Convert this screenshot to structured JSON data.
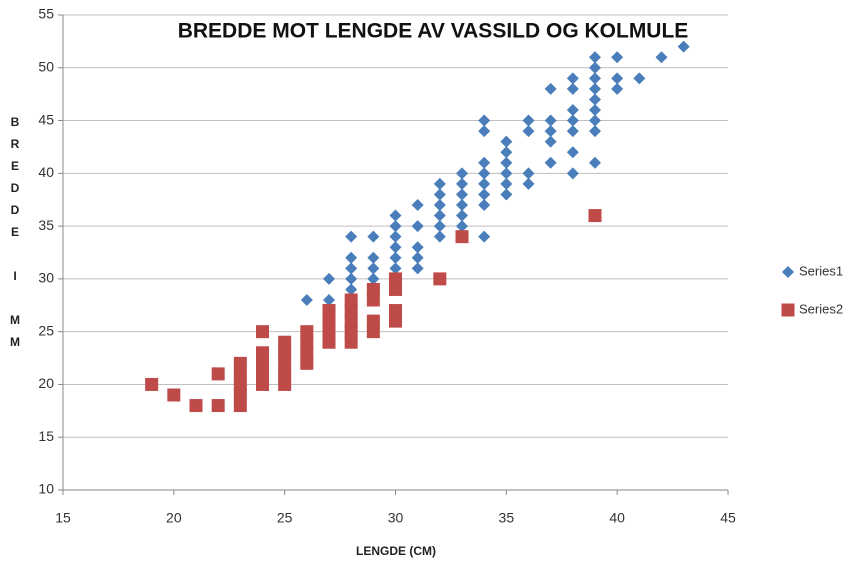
{
  "chart_data": {
    "type": "scatter",
    "title": "BREDDE MOT LENGDE AV VASSILD OG KOLMULE",
    "x_label": "LENGDE (CM)",
    "y_label": "BREDDE I MM",
    "xlim": [
      15,
      45
    ],
    "xticks": [
      15,
      20,
      25,
      30,
      35,
      40,
      45
    ],
    "ylim": [
      10,
      55
    ],
    "yticks": [
      10,
      15,
      20,
      25,
      30,
      35,
      40,
      45,
      50,
      55
    ],
    "grid": true,
    "legend": "right",
    "series": [
      {
        "name": "Series1",
        "color": "#4a7ebb",
        "marker": "diamond",
        "x": [
          26,
          27,
          27,
          28,
          28,
          28,
          28,
          28,
          29,
          29,
          29,
          29,
          29,
          30,
          30,
          30,
          30,
          30,
          30,
          30,
          30,
          31,
          31,
          31,
          31,
          31,
          32,
          32,
          32,
          32,
          32,
          32,
          33,
          33,
          33,
          33,
          33,
          33,
          33,
          34,
          34,
          34,
          34,
          34,
          34,
          34,
          34,
          35,
          35,
          35,
          35,
          35,
          35,
          36,
          36,
          36,
          36,
          37,
          37,
          37,
          37,
          37,
          38,
          38,
          38,
          38,
          38,
          38,
          38,
          39,
          39,
          39,
          39,
          39,
          39,
          39,
          39,
          39,
          40,
          40,
          40,
          41,
          42,
          43
        ],
        "values": [
          28,
          28,
          30,
          29,
          30,
          31,
          32,
          34,
          29,
          30,
          31,
          32,
          34,
          29,
          30,
          31,
          32,
          33,
          34,
          35,
          36,
          31,
          32,
          33,
          35,
          37,
          34,
          35,
          36,
          37,
          38,
          39,
          34,
          35,
          36,
          37,
          38,
          39,
          40,
          34,
          37,
          38,
          39,
          40,
          41,
          44,
          45,
          38,
          39,
          40,
          41,
          42,
          43,
          39,
          40,
          44,
          45,
          41,
          43,
          44,
          45,
          48,
          40,
          42,
          44,
          45,
          46,
          48,
          49,
          41,
          44,
          45,
          46,
          47,
          48,
          49,
          50,
          51,
          48,
          49,
          51,
          49,
          51,
          52
        ]
      },
      {
        "name": "Series2",
        "color": "#be4b48",
        "marker": "square",
        "x": [
          19,
          20,
          21,
          22,
          22,
          23,
          23,
          23,
          23,
          23,
          24,
          24,
          24,
          24,
          24,
          25,
          25,
          25,
          25,
          25,
          26,
          26,
          26,
          26,
          27,
          27,
          27,
          27,
          28,
          28,
          28,
          28,
          28,
          29,
          29,
          29,
          29,
          30,
          30,
          30,
          30,
          32,
          33,
          39
        ],
        "values": [
          20,
          19,
          18,
          18,
          21,
          18,
          19,
          20,
          21,
          22,
          20,
          21,
          22,
          23,
          25,
          20,
          21,
          22,
          23,
          24,
          22,
          23,
          24,
          25,
          24,
          25,
          26,
          27,
          24,
          25,
          26,
          27,
          28,
          25,
          26,
          28,
          29,
          26,
          27,
          29,
          30,
          30,
          34,
          36
        ]
      }
    ]
  }
}
